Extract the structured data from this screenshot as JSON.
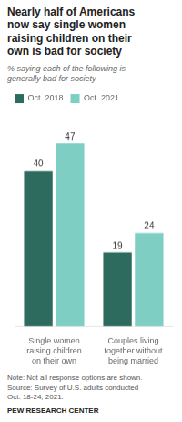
{
  "chart_data": {
    "type": "bar",
    "title": "Nearly half of Americans\nnow say single women\nraising children on their\nown is bad for society",
    "subtitle": "% saying each of the following is\ngenerally bad for society",
    "categories": [
      "Single women\nraising children\non their own",
      "Couples living\ntogether without\nbeing married"
    ],
    "series": [
      {
        "name": "Oct. 2018",
        "color": "#2d6b5e",
        "values": [
          40,
          19
        ]
      },
      {
        "name": "Oct. 2021",
        "color": "#7ecec4",
        "values": [
          47,
          24
        ]
      }
    ],
    "ylim": [
      0,
      55
    ],
    "grid": false,
    "legend": "top",
    "data_labels": true,
    "tick_labels": "x",
    "annotations": [
      "Note: Not all response options are shown.\nSource: Survey of U.S. adults conducted\nOct. 18-24, 2021.",
      "PEW RESEARCH CENTER"
    ]
  }
}
